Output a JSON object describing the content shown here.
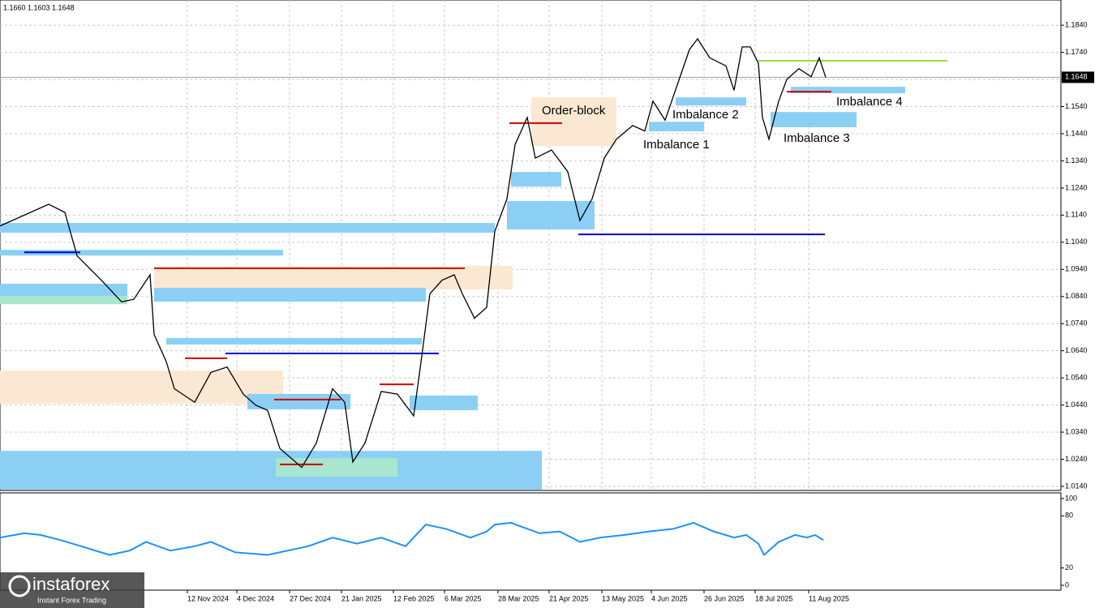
{
  "header": "1.1660 1.1603 1.1648",
  "chart_data": {
    "type": "line",
    "color": "#000000",
    "x": [
      0,
      7.5,
      15,
      20,
      23.75,
      31.25,
      37.5,
      41.25,
      46.25,
      47.5,
      51.25,
      53.75,
      60,
      65,
      70,
      75,
      78.75,
      82.5,
      86.25,
      93,
      97.5,
      102.5,
      106.25,
      108.75,
      112.5,
      117.5,
      122.5,
      127.5,
      130,
      132.5,
      136.25,
      140,
      142.5,
      146.25,
      150,
      152.5,
      156.25,
      158.75,
      162.5,
      165,
      170,
      175,
      178.75,
      182.5,
      186.25,
      190,
      195,
      198.75,
      201.25,
      205,
      208.75,
      212.5,
      215,
      218.75,
      223.75,
      226.25,
      228.75,
      231.25,
      233.75,
      235,
      237,
      240,
      242.5,
      246.25,
      250,
      252.5,
      254.5
    ],
    "values": [
      1.11,
      1.114,
      1.118,
      1.115,
      1.099,
      1.09,
      1.082,
      1.083,
      1.092,
      1.07,
      1.06,
      1.05,
      1.045,
      1.056,
      1.058,
      1.048,
      1.044,
      1.042,
      1.028,
      1.021,
      1.03,
      1.05,
      1.045,
      1.023,
      1.03,
      1.049,
      1.048,
      1.04,
      1.062,
      1.085,
      1.09,
      1.092,
      1.085,
      1.076,
      1.08,
      1.108,
      1.12,
      1.14,
      1.15,
      1.135,
      1.138,
      1.13,
      1.112,
      1.12,
      1.135,
      1.142,
      1.147,
      1.145,
      1.156,
      1.149,
      1.162,
      1.175,
      1.179,
      1.172,
      1.169,
      1.16,
      1.176,
      1.176,
      1.17,
      1.15,
      1.142,
      1.156,
      1.164,
      1.168,
      1.165,
      1.172,
      1.1648
    ],
    "xlim": [
      0,
      327
    ],
    "xticks": [
      {
        "value": 57.75,
        "label": "12 Nov 2024"
      },
      {
        "value": 73,
        "label": "4 Dec 2024"
      },
      {
        "value": 89.25,
        "label": "27 Dec 2024"
      },
      {
        "value": 105.25,
        "label": "21 Jan 2025"
      },
      {
        "value": 121.25,
        "label": "12 Feb 2025"
      },
      {
        "value": 137,
        "label": "6 Mar 2025"
      },
      {
        "value": 153.5,
        "label": "28 Mar 2025"
      },
      {
        "value": 169.25,
        "label": "21 Apr 2025"
      },
      {
        "value": 185.5,
        "label": "13 May 2025"
      },
      {
        "value": 200.75,
        "label": "4 Jun 2025"
      },
      {
        "value": 217,
        "label": "26 Jun 2025"
      },
      {
        "value": 232.75,
        "label": "18 Jul 2025"
      },
      {
        "value": 249.25,
        "label": "11 Aug 2025"
      }
    ],
    "ylim": [
      1.0125,
      1.1933
    ],
    "yticks": [
      {
        "value": 1.184,
        "label": "1.1840"
      },
      {
        "value": 1.174,
        "label": "1.1740"
      },
      {
        "value": 1.164,
        "label": "1.1640"
      },
      {
        "value": 1.154,
        "label": "1.1540"
      },
      {
        "value": 1.144,
        "label": "1.1440"
      },
      {
        "value": 1.134,
        "label": "1.1340"
      },
      {
        "value": 1.124,
        "label": "1.1240"
      },
      {
        "value": 1.114,
        "label": "1.1140"
      },
      {
        "value": 1.104,
        "label": "1.1040"
      },
      {
        "value": 1.094,
        "label": "1.0940"
      },
      {
        "value": 1.084,
        "label": "1.0840"
      },
      {
        "value": 1.074,
        "label": "1.0740"
      },
      {
        "value": 1.064,
        "label": "1.0640"
      },
      {
        "value": 1.054,
        "label": "1.0540"
      },
      {
        "value": 1.044,
        "label": "1.0440"
      },
      {
        "value": 1.034,
        "label": "1.0340"
      },
      {
        "value": 1.024,
        "label": "1.0240"
      },
      {
        "value": 1.014,
        "label": "1.0140"
      }
    ],
    "grid": true,
    "last_price": {
      "value": 1.1648,
      "label": "1.1648"
    },
    "zones": [
      {
        "x1": 0,
        "x2": 87.25,
        "y1": 1.0567,
        "y2": 1.0445,
        "color": "#fbe8d3"
      },
      {
        "x1": 47.5,
        "x2": 158,
        "y1": 1.0953,
        "y2": 1.0866,
        "color": "#fbe8d3"
      },
      {
        "x1": 163.75,
        "x2": 190,
        "y1": 1.1574,
        "y2": 1.1395,
        "color": "#fbe8d3"
      },
      {
        "x1": 0,
        "x2": 152.5,
        "y1": 1.1111,
        "y2": 1.1075,
        "color": "#8ccff5"
      },
      {
        "x1": 0,
        "x2": 87.25,
        "y1": 1.1012,
        "y2": 1.0991,
        "color": "#8ccff5"
      },
      {
        "x1": 0,
        "x2": 39.25,
        "y1": 1.0887,
        "y2": 1.0812,
        "color": "#8ccff5"
      },
      {
        "x1": 0,
        "x2": 39.25,
        "y1": 1.0842,
        "y2": 1.0812,
        "color": "#a8e6cf"
      },
      {
        "x1": 47.5,
        "x2": 131.25,
        "y1": 1.0872,
        "y2": 1.0821,
        "color": "#8ccff5"
      },
      {
        "x1": 51.25,
        "x2": 130,
        "y1": 1.0687,
        "y2": 1.0663,
        "color": "#8ccff5"
      },
      {
        "x1": 126.25,
        "x2": 147.25,
        "y1": 1.0475,
        "y2": 1.0421,
        "color": "#8ccff5"
      },
      {
        "x1": 76.25,
        "x2": 108,
        "y1": 1.0481,
        "y2": 1.0424,
        "color": "#8ccff5"
      },
      {
        "x1": 0,
        "x2": 167,
        "y1": 1.0271,
        "y2": 1.0128,
        "color": "#8ccff5"
      },
      {
        "x1": 85,
        "x2": 122.5,
        "y1": 1.0244,
        "y2": 1.0176,
        "color": "#a8e6cf"
      },
      {
        "x1": 156.25,
        "x2": 183.25,
        "y1": 1.1192,
        "y2": 1.1087,
        "color": "#8ccff5"
      },
      {
        "x1": 157.5,
        "x2": 173,
        "y1": 1.1299,
        "y2": 1.1245,
        "color": "#8ccff5"
      },
      {
        "x1": 200,
        "x2": 217,
        "y1": 1.1484,
        "y2": 1.1449,
        "color": "#8ccff5"
      },
      {
        "x1": 208.25,
        "x2": 230,
        "y1": 1.1574,
        "y2": 1.1544,
        "color": "#8ccff5"
      },
      {
        "x1": 237.5,
        "x2": 264,
        "y1": 1.152,
        "y2": 1.1464,
        "color": "#8ccff5"
      },
      {
        "x1": 243.75,
        "x2": 279,
        "y1": 1.1613,
        "y2": 1.1589,
        "color": "#8ccff5"
      }
    ],
    "levels": [
      {
        "x1": 178.25,
        "x2": 254.25,
        "y": 1.1069,
        "color": "#0000c0"
      },
      {
        "x1": 69.5,
        "x2": 135.25,
        "y": 1.063,
        "color": "#0000c0"
      },
      {
        "x1": 7.5,
        "x2": 24.75,
        "y": 1.1003,
        "color": "#0000c0"
      },
      {
        "x1": 47.5,
        "x2": 143.25,
        "y": 1.0944,
        "color": "#d00000"
      },
      {
        "x1": 57,
        "x2": 70,
        "y": 1.0612,
        "color": "#d00000"
      },
      {
        "x1": 157,
        "x2": 173.25,
        "y": 1.1479,
        "color": "#d00000"
      },
      {
        "x1": 242.5,
        "x2": 256.25,
        "y": 1.1595,
        "color": "#d00000"
      },
      {
        "x1": 86.25,
        "x2": 99.5,
        "y": 1.0221,
        "color": "#d00000"
      },
      {
        "x1": 117,
        "x2": 127.5,
        "y": 1.0516,
        "color": "#d00000"
      },
      {
        "x1": 84.5,
        "x2": 105,
        "y": 1.046,
        "color": "#d00000"
      },
      {
        "x1": 233.75,
        "x2": 292,
        "y": 1.1709,
        "color": "#99e033"
      }
    ],
    "annotations": [
      {
        "text": "Order-block",
        "x": 167,
        "y": 1.1523
      },
      {
        "text": "Imbalance 1",
        "x": 198.25,
        "y": 1.1398
      },
      {
        "text": "Imbalance 2",
        "x": 207.25,
        "y": 1.1508
      },
      {
        "text": "Imbalance 3",
        "x": 241.5,
        "y": 1.1422
      },
      {
        "text": "Imbalance 4",
        "x": 257.75,
        "y": 1.1556
      }
    ],
    "rsi": {
      "color": "#1e90ff",
      "x": [
        0,
        7.5,
        12.5,
        18.75,
        25,
        33.75,
        40,
        45,
        52.5,
        60,
        65,
        72.5,
        82.5,
        95,
        102.5,
        110,
        117.5,
        125,
        131.25,
        137.5,
        145,
        150,
        152.5,
        157.5,
        166.25,
        172.5,
        178.75,
        185,
        192.5,
        200,
        207.5,
        213.75,
        220,
        226.25,
        230,
        233.75,
        235.5,
        240,
        245,
        248.75,
        251.25,
        253.75
      ],
      "values": [
        55,
        60,
        58,
        52,
        45,
        35,
        40,
        50,
        40,
        45,
        50,
        38,
        35,
        45,
        55,
        48,
        55,
        45,
        70,
        65,
        55,
        62,
        70,
        72,
        60,
        62,
        50,
        55,
        58,
        62,
        65,
        72,
        62,
        55,
        58,
        48,
        35,
        50,
        58,
        55,
        58,
        52
      ],
      "ylim": [
        -5.6,
        106.5
      ],
      "yticks": [
        100,
        80,
        20,
        0
      ]
    }
  },
  "logo": {
    "brand": "instaforex",
    "tagline": "Instant Forex Trading"
  }
}
